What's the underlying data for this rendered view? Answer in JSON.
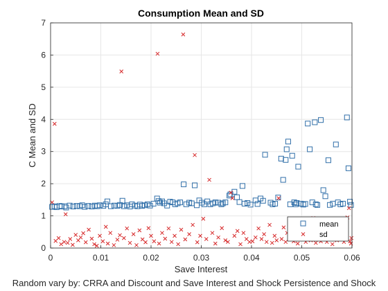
{
  "chart_data": {
    "type": "scatter",
    "title": "Consumption Mean and SD",
    "xlabel": "Save Interest",
    "ylabel": "C Mean and SD",
    "caption": "Random vary by: CRRA and Discount and Save Interest and Shock Persistence and Shock",
    "xlim": [
      0,
      0.06
    ],
    "ylim": [
      0,
      7
    ],
    "xticks": [
      "0",
      "0.01",
      "0.02",
      "0.03",
      "0.04",
      "0.05",
      "0.06"
    ],
    "yticks": [
      "0",
      "1",
      "2",
      "3",
      "4",
      "5",
      "6",
      "7"
    ],
    "grid": true,
    "legend_position": "bottom-right",
    "colors": {
      "mean": "#2f6ea8",
      "sd": "#d62728"
    },
    "series": [
      {
        "name": "mean",
        "marker": "square",
        "points": [
          [
            0.0003,
            1.28
          ],
          [
            0.0008,
            1.3
          ],
          [
            0.0012,
            1.27
          ],
          [
            0.0018,
            1.31
          ],
          [
            0.0022,
            1.29
          ],
          [
            0.0028,
            1.3
          ],
          [
            0.0031,
            1.26
          ],
          [
            0.0038,
            1.32
          ],
          [
            0.0045,
            1.29
          ],
          [
            0.0052,
            1.31
          ],
          [
            0.0058,
            1.3
          ],
          [
            0.0063,
            1.33
          ],
          [
            0.0068,
            1.28
          ],
          [
            0.0075,
            1.31
          ],
          [
            0.0082,
            1.29
          ],
          [
            0.0088,
            1.32
          ],
          [
            0.0093,
            1.3
          ],
          [
            0.0098,
            1.33
          ],
          [
            0.0105,
            1.31
          ],
          [
            0.011,
            1.36
          ],
          [
            0.0113,
            1.45
          ],
          [
            0.012,
            1.3
          ],
          [
            0.0127,
            1.32
          ],
          [
            0.0133,
            1.31
          ],
          [
            0.0138,
            1.34
          ],
          [
            0.0143,
            1.47
          ],
          [
            0.0146,
            1.3
          ],
          [
            0.0152,
            1.33
          ],
          [
            0.0158,
            1.29
          ],
          [
            0.0162,
            1.36
          ],
          [
            0.0168,
            1.32
          ],
          [
            0.0173,
            1.3
          ],
          [
            0.0178,
            1.35
          ],
          [
            0.0182,
            1.31
          ],
          [
            0.0187,
            1.33
          ],
          [
            0.0193,
            1.36
          ],
          [
            0.0198,
            1.32
          ],
          [
            0.0205,
            1.38
          ],
          [
            0.0212,
            1.54
          ],
          [
            0.0215,
            1.46
          ],
          [
            0.0218,
            1.41
          ],
          [
            0.0222,
            1.45
          ],
          [
            0.0226,
            1.39
          ],
          [
            0.0232,
            1.32
          ],
          [
            0.0238,
            1.44
          ],
          [
            0.0243,
            1.42
          ],
          [
            0.0248,
            1.36
          ],
          [
            0.0253,
            1.39
          ],
          [
            0.0258,
            1.42
          ],
          [
            0.0265,
            1.98
          ],
          [
            0.027,
            1.36
          ],
          [
            0.0276,
            1.41
          ],
          [
            0.0281,
            1.39
          ],
          [
            0.0287,
            1.95
          ],
          [
            0.0291,
            1.33
          ],
          [
            0.0296,
            1.48
          ],
          [
            0.0301,
            1.41
          ],
          [
            0.0306,
            1.36
          ],
          [
            0.0312,
            1.45
          ],
          [
            0.0318,
            1.36
          ],
          [
            0.0323,
            1.39
          ],
          [
            0.0328,
            1.42
          ],
          [
            0.0334,
            1.41
          ],
          [
            0.034,
            1.36
          ],
          [
            0.0343,
            1.39
          ],
          [
            0.0348,
            1.42
          ],
          [
            0.0356,
            1.63
          ],
          [
            0.0358,
            1.67
          ],
          [
            0.0366,
            1.75
          ],
          [
            0.0371,
            1.58
          ],
          [
            0.0376,
            1.43
          ],
          [
            0.0382,
            1.93
          ],
          [
            0.0386,
            1.38
          ],
          [
            0.0392,
            1.4
          ],
          [
            0.0398,
            1.35
          ],
          [
            0.0408,
            1.48
          ],
          [
            0.0412,
            1.37
          ],
          [
            0.0418,
            1.54
          ],
          [
            0.0423,
            1.47
          ],
          [
            0.0427,
            2.9
          ],
          [
            0.0438,
            1.41
          ],
          [
            0.0442,
            1.36
          ],
          [
            0.0447,
            1.38
          ],
          [
            0.0453,
            1.57
          ],
          [
            0.0459,
            2.78
          ],
          [
            0.0463,
            2.12
          ],
          [
            0.0468,
            2.74
          ],
          [
            0.047,
            3.07
          ],
          [
            0.0473,
            3.31
          ],
          [
            0.0477,
            1.36
          ],
          [
            0.0481,
            2.87
          ],
          [
            0.0485,
            1.42
          ],
          [
            0.0488,
            1.36
          ],
          [
            0.049,
            1.4
          ],
          [
            0.0493,
            2.53
          ],
          [
            0.0498,
            1.38
          ],
          [
            0.0503,
            1.35
          ],
          [
            0.0507,
            1.37
          ],
          [
            0.0512,
            3.87
          ],
          [
            0.0516,
            3.07
          ],
          [
            0.0521,
            1.42
          ],
          [
            0.0526,
            3.91
          ],
          [
            0.0528,
            1.36
          ],
          [
            0.0531,
            1.34
          ],
          [
            0.0538,
            3.98
          ],
          [
            0.0543,
            1.8
          ],
          [
            0.0547,
            1.61
          ],
          [
            0.0553,
            2.73
          ],
          [
            0.0556,
            1.34
          ],
          [
            0.0562,
            1.38
          ],
          [
            0.0568,
            3.22
          ],
          [
            0.0572,
            1.42
          ],
          [
            0.0577,
            1.36
          ],
          [
            0.0582,
            1.38
          ],
          [
            0.059,
            4.06
          ],
          [
            0.0593,
            2.48
          ],
          [
            0.0596,
            1.44
          ],
          [
            0.0598,
            1.34
          ]
        ]
      },
      {
        "name": "sd",
        "marker": "x",
        "points": [
          [
            0.0003,
            1.42
          ],
          [
            0.0008,
            3.86
          ],
          [
            0.001,
            0.22
          ],
          [
            0.0016,
            0.31
          ],
          [
            0.0021,
            0.12
          ],
          [
            0.0027,
            0.19
          ],
          [
            0.003,
            1.05
          ],
          [
            0.0034,
            0.16
          ],
          [
            0.0039,
            0.28
          ],
          [
            0.0044,
            0.1
          ],
          [
            0.005,
            0.41
          ],
          [
            0.0055,
            0.24
          ],
          [
            0.006,
            0.33
          ],
          [
            0.0065,
            0.46
          ],
          [
            0.007,
            0.18
          ],
          [
            0.0076,
            0.57
          ],
          [
            0.0082,
            0.29
          ],
          [
            0.0087,
            0.12
          ],
          [
            0.0092,
            0.07
          ],
          [
            0.0098,
            0.38
          ],
          [
            0.0104,
            0.21
          ],
          [
            0.011,
            0.66
          ],
          [
            0.0114,
            0.14
          ],
          [
            0.0119,
            0.47
          ],
          [
            0.0126,
            0.09
          ],
          [
            0.0133,
            0.26
          ],
          [
            0.0138,
            0.4
          ],
          [
            0.0141,
            5.49
          ],
          [
            0.0146,
            0.31
          ],
          [
            0.0152,
            0.61
          ],
          [
            0.0158,
            0.16
          ],
          [
            0.0165,
            0.43
          ],
          [
            0.0171,
            0.09
          ],
          [
            0.0177,
            0.55
          ],
          [
            0.0183,
            0.27
          ],
          [
            0.0189,
            0.18
          ],
          [
            0.0195,
            0.62
          ],
          [
            0.02,
            0.38
          ],
          [
            0.0206,
            0.21
          ],
          [
            0.0213,
            6.04
          ],
          [
            0.0216,
            0.14
          ],
          [
            0.0222,
            0.47
          ],
          [
            0.0228,
            0.29
          ],
          [
            0.0235,
            0.61
          ],
          [
            0.0241,
            0.19
          ],
          [
            0.0247,
            0.38
          ],
          [
            0.0254,
            0.12
          ],
          [
            0.026,
            0.57
          ],
          [
            0.0264,
            6.64
          ],
          [
            0.0268,
            0.27
          ],
          [
            0.0276,
            0.43
          ],
          [
            0.0283,
            0.72
          ],
          [
            0.0287,
            2.89
          ],
          [
            0.0292,
            0.18
          ],
          [
            0.0298,
            0.38
          ],
          [
            0.0304,
            0.91
          ],
          [
            0.031,
            0.28
          ],
          [
            0.0316,
            2.12
          ],
          [
            0.0322,
            0.47
          ],
          [
            0.0328,
            0.14
          ],
          [
            0.0334,
            0.33
          ],
          [
            0.0341,
            0.62
          ],
          [
            0.0348,
            0.24
          ],
          [
            0.0353,
            0.19
          ],
          [
            0.0359,
            1.72
          ],
          [
            0.0362,
            1.55
          ],
          [
            0.0366,
            0.38
          ],
          [
            0.0372,
            0.53
          ],
          [
            0.0378,
            0.12
          ],
          [
            0.0384,
            0.47
          ],
          [
            0.039,
            0.28
          ],
          [
            0.0396,
            0.19
          ],
          [
            0.0402,
            0.21
          ],
          [
            0.0408,
            0.33
          ],
          [
            0.0414,
            0.61
          ],
          [
            0.042,
            0.28
          ],
          [
            0.0425,
            0.43
          ],
          [
            0.043,
            0.19
          ],
          [
            0.0436,
            0.72
          ],
          [
            0.0441,
            0.16
          ],
          [
            0.0446,
            0.38
          ],
          [
            0.045,
            0.24
          ],
          [
            0.0454,
            1.55
          ],
          [
            0.046,
            0.28
          ],
          [
            0.0464,
            0.64
          ],
          [
            0.0468,
            0.19
          ],
          [
            0.0471,
            0.47
          ],
          [
            0.0476,
            0.33
          ],
          [
            0.048,
            0.61
          ],
          [
            0.0484,
            0.21
          ],
          [
            0.0488,
            0.43
          ],
          [
            0.0492,
            0.14
          ],
          [
            0.0496,
            0.55
          ],
          [
            0.05,
            0.28
          ],
          [
            0.0504,
            0.72
          ],
          [
            0.0508,
            0.19
          ],
          [
            0.0513,
            0.43
          ],
          [
            0.0518,
            0.24
          ],
          [
            0.0523,
            0.93
          ],
          [
            0.0528,
            0.16
          ],
          [
            0.0533,
            0.38
          ],
          [
            0.0538,
            0.21
          ],
          [
            0.0542,
            0.66
          ],
          [
            0.0546,
            0.28
          ],
          [
            0.055,
            0.19
          ],
          [
            0.0556,
            0.47
          ],
          [
            0.0561,
            0.12
          ],
          [
            0.0566,
            0.38
          ],
          [
            0.057,
            0.24
          ],
          [
            0.0575,
            0.55
          ],
          [
            0.058,
            0.33
          ],
          [
            0.0584,
            0.19
          ],
          [
            0.0588,
            0.28
          ],
          [
            0.0591,
            0.95
          ],
          [
            0.0594,
            1.24
          ],
          [
            0.0596,
            0.21
          ],
          [
            0.0598,
            0.14
          ],
          [
            0.0599,
            0.31
          ]
        ]
      }
    ]
  }
}
